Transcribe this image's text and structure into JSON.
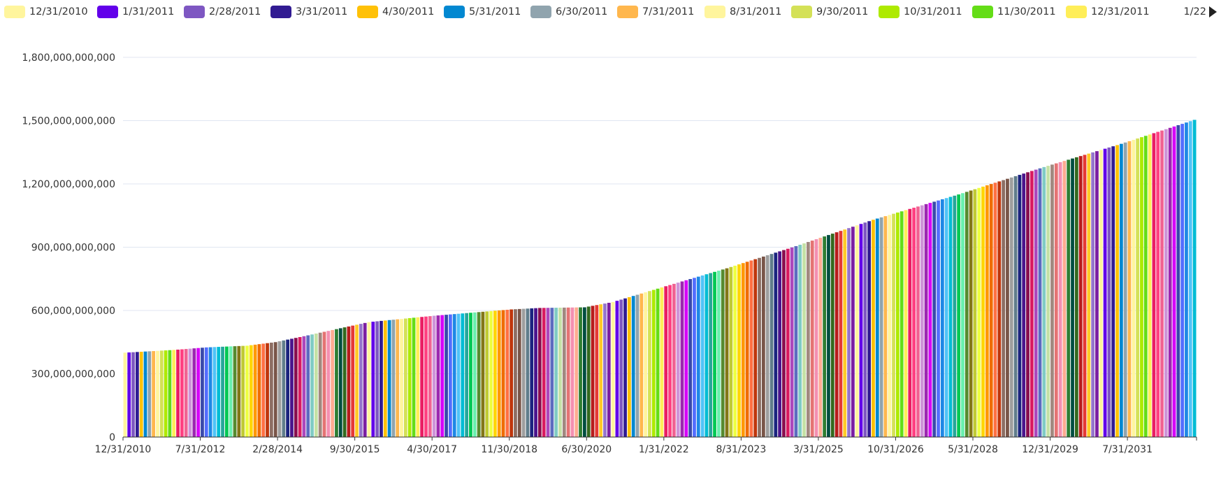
{
  "legend": {
    "items": [
      {
        "label": "12/31/2010",
        "color": "#fff59d"
      },
      {
        "label": "1/31/2011",
        "color": "#6200ea"
      },
      {
        "label": "2/28/2011",
        "color": "#7e57c2"
      },
      {
        "label": "3/31/2011",
        "color": "#311b92"
      },
      {
        "label": "4/30/2011",
        "color": "#ffc107"
      },
      {
        "label": "5/31/2011",
        "color": "#0288d1"
      },
      {
        "label": "6/30/2011",
        "color": "#90a4ae"
      },
      {
        "label": "7/31/2011",
        "color": "#ffb74d"
      },
      {
        "label": "8/31/2011",
        "color": "#fff59d"
      },
      {
        "label": "9/30/2011",
        "color": "#d4e157"
      },
      {
        "label": "10/31/2011",
        "color": "#aeea00"
      },
      {
        "label": "11/30/2011",
        "color": "#64dd17"
      },
      {
        "label": "12/31/2011",
        "color": "#ffee58"
      }
    ],
    "page": "1/22"
  },
  "chart_data": {
    "type": "bar",
    "x_start": "12/31/2010",
    "x_end": "12/31/2032",
    "x_tick_labels": [
      "12/31/2010",
      "7/31/2012",
      "2/28/2014",
      "9/30/2015",
      "4/30/2017",
      "11/30/2018",
      "6/30/2020",
      "1/31/2022",
      "8/31/2023",
      "3/31/2025",
      "10/31/2026",
      "5/31/2028",
      "12/31/2029",
      "7/31/2031"
    ],
    "y_ticks": [
      0,
      300000000000,
      600000000000,
      900000000000,
      1200000000000,
      1500000000000,
      1800000000000
    ],
    "y_tick_labels": [
      "0",
      "300,000,000,000",
      "600,000,000,000",
      "900,000,000,000",
      "1,200,000,000,000",
      "1,500,000,000,000",
      "1,800,000,000,000"
    ],
    "ylim": [
      0,
      1800000000000
    ],
    "grid": true,
    "legend_position": "top",
    "value_anchors": [
      {
        "month": 0,
        "value": 400000000000
      },
      {
        "month": 12,
        "value": 413000000000
      },
      {
        "month": 20,
        "value": 425000000000
      },
      {
        "month": 30,
        "value": 433000000000
      },
      {
        "month": 37,
        "value": 450000000000
      },
      {
        "month": 44,
        "value": 478000000000
      },
      {
        "month": 54,
        "value": 520000000000
      },
      {
        "month": 60,
        "value": 545000000000
      },
      {
        "month": 76,
        "value": 575000000000
      },
      {
        "month": 95,
        "value": 605000000000
      },
      {
        "month": 102,
        "value": 612000000000
      },
      {
        "month": 113,
        "value": 615000000000
      },
      {
        "month": 120,
        "value": 640000000000
      },
      {
        "month": 133,
        "value": 715000000000
      },
      {
        "month": 148,
        "value": 800000000000
      },
      {
        "month": 165,
        "value": 905000000000
      },
      {
        "month": 184,
        "value": 1030000000000
      },
      {
        "month": 205,
        "value": 1150000000000
      },
      {
        "month": 226,
        "value": 1280000000000
      },
      {
        "month": 245,
        "value": 1390000000000
      },
      {
        "month": 264,
        "value": 1510000000000
      }
    ],
    "palette": [
      "#fff59d",
      "#6200ea",
      "#7e57c2",
      "#311b92",
      "#ffc107",
      "#0288d1",
      "#90a4ae",
      "#ffb74d",
      "#fff59d",
      "#d4e157",
      "#aeea00",
      "#64dd17",
      "#ffee58",
      "#e91e63",
      "#ff4081",
      "#f06292",
      "#ce93d8",
      "#9c27b0",
      "#d500f9",
      "#3949ab",
      "#536dfe",
      "#1e88e5",
      "#4fc3f7",
      "#00bcd4",
      "#26a69a",
      "#00c853",
      "#69f0ae",
      "#558b2f",
      "#827717",
      "#c0ca33",
      "#eeff41",
      "#ffd600",
      "#ff9800",
      "#ef6c00",
      "#ff7043",
      "#bf360c",
      "#8d6e63",
      "#795548",
      "#9e9e9e",
      "#607d8b",
      "#1a237e",
      "#4a148c",
      "#880e4f",
      "#d81b60",
      "#ab47bc",
      "#5c6bc0",
      "#80cbc4",
      "#c5e1a5",
      "#a1887f",
      "#e57373",
      "#f48fb1",
      "#ffab91",
      "#2e7d32",
      "#004d40",
      "#33691e",
      "#b71c1c",
      "#e53935",
      "#ffca28",
      "#9575cd",
      "#7b1fa2"
    ]
  }
}
